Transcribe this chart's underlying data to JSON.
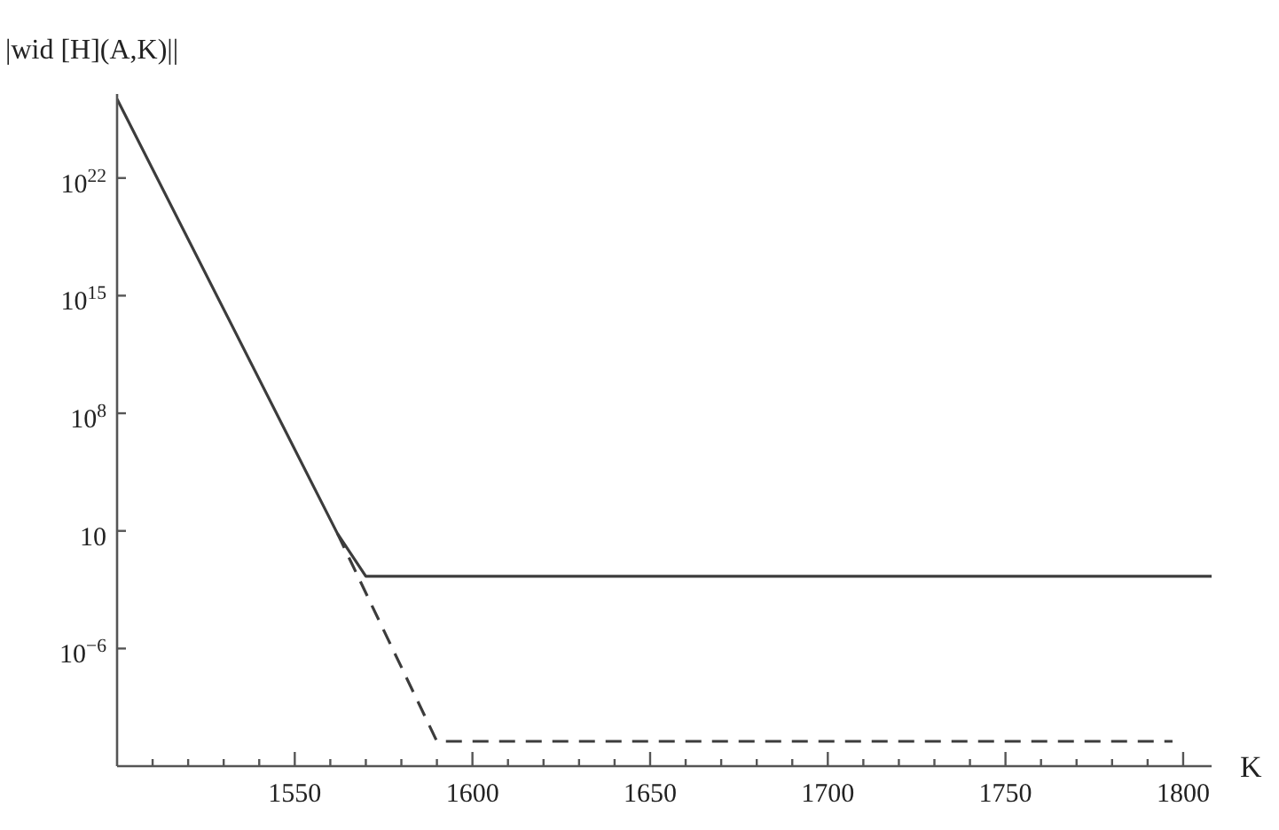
{
  "chart_data": {
    "type": "line",
    "xlabel": "K",
    "ylabel": "|wid [H](A,K)||",
    "xlim": [
      1500,
      1808
    ],
    "xticks": [
      {
        "value": 1510,
        "label": null
      },
      {
        "value": 1520,
        "label": null
      },
      {
        "value": 1530,
        "label": null
      },
      {
        "value": 1540,
        "label": null
      },
      1550,
      {
        "value": 1560,
        "label": null
      },
      {
        "value": 1570,
        "label": null
      },
      {
        "value": 1580,
        "label": null
      },
      {
        "value": 1590,
        "label": null
      },
      1600,
      {
        "value": 1610,
        "label": null
      },
      {
        "value": 1620,
        "label": null
      },
      {
        "value": 1630,
        "label": null
      },
      {
        "value": 1640,
        "label": null
      },
      1650,
      {
        "value": 1660,
        "label": null
      },
      {
        "value": 1670,
        "label": null
      },
      {
        "value": 1680,
        "label": null
      },
      {
        "value": 1690,
        "label": null
      },
      1700,
      {
        "value": 1710,
        "label": null
      },
      {
        "value": 1720,
        "label": null
      },
      {
        "value": 1730,
        "label": null
      },
      {
        "value": 1740,
        "label": null
      },
      1750,
      {
        "value": 1760,
        "label": null
      },
      {
        "value": 1770,
        "label": null
      },
      {
        "value": 1780,
        "label": null
      },
      {
        "value": 1790,
        "label": null
      },
      1800
    ],
    "ylim": [
      1e-13,
      1e+27
    ],
    "yticks": [
      {
        "value": 1e-06,
        "label": "10$^{−6}$"
      },
      10,
      {
        "value": 100000000.0,
        "label": "10$^{8}$"
      },
      {
        "value": 1000000000000000.0,
        "label": "10$^{15}$"
      },
      {
        "value": 1e+22,
        "label": "10$^{22}$"
      }
    ],
    "log": "y",
    "marker": "none",
    "line_style": "solid",
    "series": [
      {
        "color": "#3c3c3c",
        "x": [
          1500,
          1562,
          1570,
          1808
        ],
        "values": [
          5e+26,
          7,
          0.02,
          0.02
        ]
      },
      {
        "color": "#3c3c3c",
        "x": [
          1562,
          1590,
          1797
        ],
        "values": [
          7,
          3e-12,
          3e-12
        ],
        "line_style": "dashed"
      }
    ]
  }
}
